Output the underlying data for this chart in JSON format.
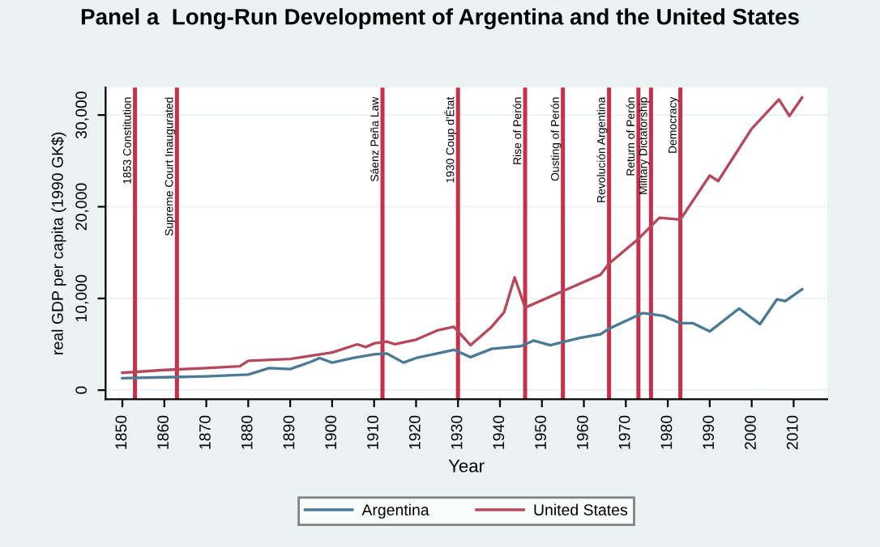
{
  "chart_data": {
    "type": "line",
    "title": "Panel a  Long-Run Development of Argentina and the United States",
    "xlabel": "Year",
    "ylabel": "real GDP per capita (1990 GK$)",
    "xlim": [
      1846,
      2018
    ],
    "xticks": [
      1850,
      1860,
      1870,
      1880,
      1890,
      1900,
      1910,
      1920,
      1930,
      1940,
      1950,
      1960,
      1970,
      1980,
      1990,
      2000,
      2010
    ],
    "ylim": [
      -1000,
      33000
    ],
    "yticks": [
      {
        "value": 0,
        "label": "0"
      },
      {
        "value": 10000,
        "label": "10,000"
      },
      {
        "value": 20000,
        "label": "20,000"
      },
      {
        "value": 30000,
        "label": "30,000"
      }
    ],
    "grid": "y",
    "legend": "bottom",
    "line_style": "solid",
    "marker": "none",
    "series": [
      {
        "name": "Argentina",
        "color": "#4a7a96",
        "x": [
          1850,
          1860,
          1870,
          1880,
          1885,
          1890,
          1895,
          1897,
          1900,
          1905,
          1910,
          1913,
          1917,
          1920,
          1925,
          1929,
          1930,
          1933,
          1938,
          1945,
          1948,
          1952,
          1959,
          1964,
          1966,
          1974,
          1979,
          1983,
          1986,
          1990,
          1997,
          2002,
          2006,
          2008,
          2012
        ],
        "values": [
          1300,
          1400,
          1500,
          1700,
          2400,
          2300,
          3100,
          3500,
          3000,
          3500,
          3900,
          4000,
          3000,
          3500,
          4000,
          4400,
          4200,
          3600,
          4500,
          4800,
          5400,
          4900,
          5700,
          6100,
          6700,
          8400,
          8100,
          7300,
          7300,
          6400,
          8900,
          7200,
          9900,
          9700,
          11000
        ]
      },
      {
        "name": "United States",
        "color": "#b5485a",
        "x": [
          1850,
          1860,
          1870,
          1878,
          1880,
          1890,
          1900,
          1906,
          1908,
          1910,
          1913,
          1915,
          1920,
          1925,
          1929,
          1933,
          1938,
          1941,
          1943.5,
          1946,
          1955,
          1964,
          1966,
          1973,
          1978,
          1983,
          1990,
          1992,
          2000,
          2006.5,
          2009,
          2012
        ],
        "values": [
          1900,
          2200,
          2400,
          2600,
          3200,
          3400,
          4100,
          5000,
          4700,
          5100,
          5300,
          5000,
          5500,
          6500,
          6900,
          4900,
          6900,
          8500,
          12300,
          9000,
          10800,
          12600,
          13800,
          16500,
          18800,
          18600,
          23400,
          22800,
          28500,
          31700,
          29900,
          31900
        ]
      }
    ],
    "ref_lines": [
      {
        "axis": "x",
        "value": 1853,
        "label": "1853 Constitution",
        "color": "#c8304a"
      },
      {
        "axis": "x",
        "value": 1863,
        "label": "Supreme Court Inaugurated",
        "color": "#c8304a"
      },
      {
        "axis": "x",
        "value": 1912,
        "label": "Sáenz Peña Law",
        "color": "#c8304a"
      },
      {
        "axis": "x",
        "value": 1930,
        "label": "1930 Coup d'État",
        "color": "#c8304a"
      },
      {
        "axis": "x",
        "value": 1946,
        "label": "Rise of Perón",
        "color": "#c8304a"
      },
      {
        "axis": "x",
        "value": 1955,
        "label": "Ousting of Perón",
        "color": "#c8304a"
      },
      {
        "axis": "x",
        "value": 1966,
        "label": "Revolución Argentina",
        "color": "#c8304a"
      },
      {
        "axis": "x",
        "value": 1973,
        "label": "Return of Perón",
        "color": "#c8304a"
      },
      {
        "axis": "x",
        "value": 1976,
        "label": "Military Dictatorship",
        "color": "#c8304a"
      },
      {
        "axis": "x",
        "value": 1983,
        "label": "Democracy",
        "color": "#c8304a"
      }
    ]
  }
}
